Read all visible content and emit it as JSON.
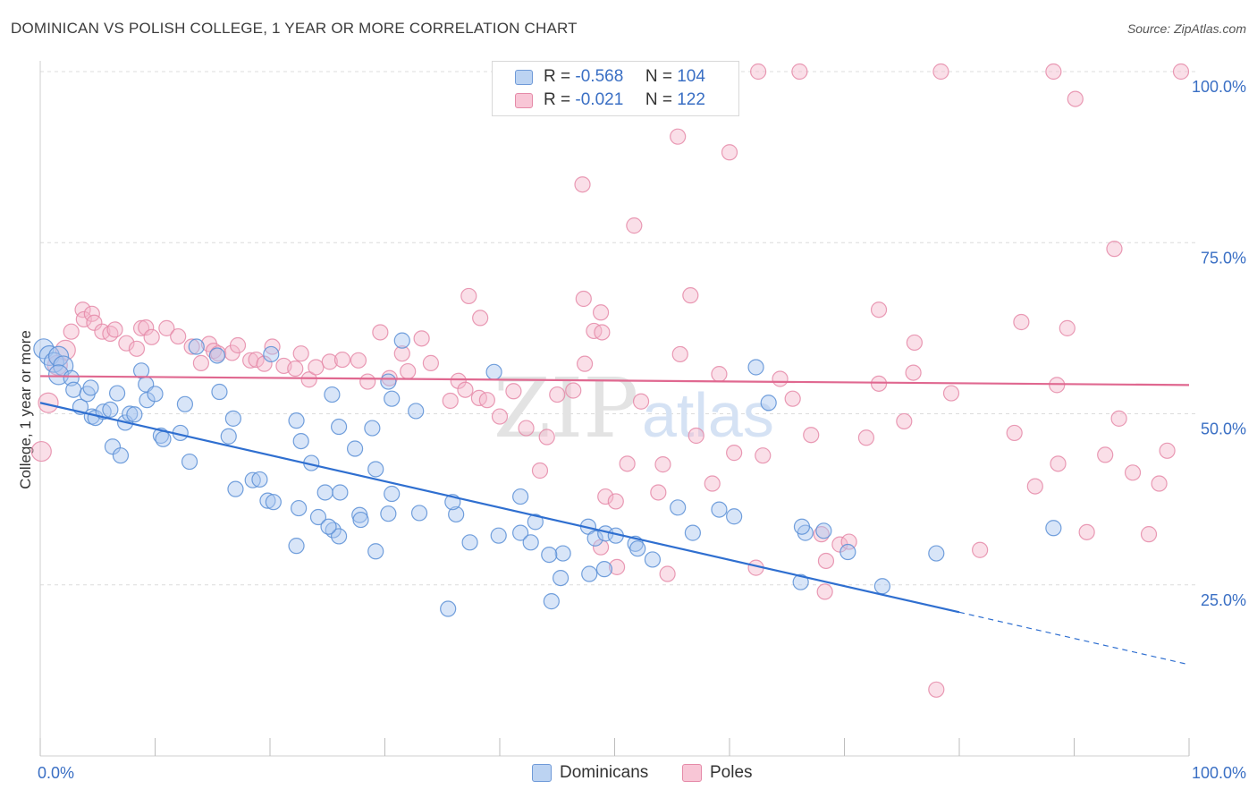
{
  "title": "DOMINICAN VS POLISH COLLEGE, 1 YEAR OR MORE CORRELATION CHART",
  "source": "Source: ZipAtlas.com",
  "watermark": {
    "zip": "ZIP",
    "atlas": "atlas"
  },
  "colors": {
    "blue_fill": "#a9c6ef",
    "blue_stroke": "#5b8fd6",
    "blue_line": "#2f6fd0",
    "pink_fill": "#f5b8cb",
    "pink_stroke": "#e58aa8",
    "pink_line": "#e06890",
    "axis_text": "#3a6fc4"
  },
  "legend": {
    "rows": [
      {
        "r_label": "R =",
        "r_value": "-0.568",
        "n_label": "N =",
        "n_value": "104"
      },
      {
        "r_label": "R =",
        "r_value": "-0.021",
        "n_label": "N =",
        "n_value": "122"
      }
    ]
  },
  "bottom_legend": {
    "blue": "Dominicans",
    "pink": "Poles"
  },
  "chart_data": {
    "type": "scatter",
    "title": "DOMINICAN VS POLISH COLLEGE, 1 YEAR OR MORE CORRELATION CHART",
    "xlabel": "",
    "ylabel": "College, 1 year or more",
    "xlim": [
      0,
      100
    ],
    "ylim": [
      0,
      100
    ],
    "x_tick_labels": [
      {
        "value": 0,
        "label": "0.0%"
      },
      {
        "value": 100,
        "label": "100.0%"
      }
    ],
    "y_tick_labels": [
      {
        "value": 25,
        "label": "25.0%"
      },
      {
        "value": 50,
        "label": "50.0%"
      },
      {
        "value": 75,
        "label": "75.0%"
      },
      {
        "value": 100,
        "label": "100.0%"
      }
    ],
    "series": [
      {
        "name": "Dominicans",
        "color": "blue",
        "r": -0.568,
        "n": 104,
        "trend": {
          "x0": 0,
          "y0": 51.6,
          "x1": 80,
          "y1": 21.0,
          "dashed_to_x": 100
        },
        "points": [
          [
            0.3,
            59.5
          ],
          [
            0.8,
            58.5
          ],
          [
            1.2,
            57.5
          ],
          [
            1.6,
            58.4
          ],
          [
            2.0,
            57.0
          ],
          [
            1.6,
            55.7
          ],
          [
            2.7,
            55.2
          ],
          [
            2.9,
            53.5
          ],
          [
            3.5,
            51.0
          ],
          [
            4.1,
            52.9
          ],
          [
            4.4,
            53.8
          ],
          [
            6.7,
            53.0
          ],
          [
            4.5,
            49.6
          ],
          [
            4.8,
            49.4
          ],
          [
            5.5,
            50.3
          ],
          [
            6.1,
            50.6
          ],
          [
            7.4,
            48.7
          ],
          [
            7.8,
            50.0
          ],
          [
            8.2,
            49.9
          ],
          [
            6.3,
            45.2
          ],
          [
            7.0,
            43.9
          ],
          [
            8.8,
            56.3
          ],
          [
            10.5,
            46.8
          ],
          [
            12.2,
            47.2
          ],
          [
            10.7,
            46.3
          ],
          [
            13.0,
            43.0
          ],
          [
            9.3,
            52.0
          ],
          [
            9.2,
            54.3
          ],
          [
            10.0,
            52.9
          ],
          [
            13.6,
            59.8
          ],
          [
            15.4,
            58.5
          ],
          [
            12.6,
            51.4
          ],
          [
            15.6,
            53.2
          ],
          [
            16.4,
            46.7
          ],
          [
            16.8,
            49.3
          ],
          [
            20.1,
            58.7
          ],
          [
            22.3,
            49.0
          ],
          [
            25.4,
            52.8
          ],
          [
            27.4,
            44.9
          ],
          [
            22.7,
            46.0
          ],
          [
            23.6,
            42.8
          ],
          [
            26.0,
            48.1
          ],
          [
            28.9,
            47.9
          ],
          [
            32.7,
            50.4
          ],
          [
            31.5,
            60.7
          ],
          [
            30.3,
            54.7
          ],
          [
            30.6,
            52.2
          ],
          [
            39.5,
            56.1
          ],
          [
            29.2,
            41.9
          ],
          [
            17.0,
            39.0
          ],
          [
            18.5,
            40.3
          ],
          [
            19.1,
            40.4
          ],
          [
            19.8,
            37.3
          ],
          [
            20.3,
            37.1
          ],
          [
            22.5,
            36.2
          ],
          [
            24.2,
            34.9
          ],
          [
            25.5,
            33.0
          ],
          [
            27.8,
            35.2
          ],
          [
            27.9,
            34.5
          ],
          [
            30.3,
            35.4
          ],
          [
            33.0,
            35.5
          ],
          [
            36.2,
            35.3
          ],
          [
            35.9,
            37.1
          ],
          [
            37.4,
            31.2
          ],
          [
            41.8,
            32.6
          ],
          [
            43.1,
            34.2
          ],
          [
            45.5,
            29.6
          ],
          [
            47.7,
            33.5
          ],
          [
            48.3,
            31.8
          ],
          [
            49.2,
            32.5
          ],
          [
            50.1,
            32.2
          ],
          [
            51.8,
            31.0
          ],
          [
            53.3,
            28.7
          ],
          [
            55.5,
            36.3
          ],
          [
            59.1,
            36.0
          ],
          [
            52.0,
            30.3
          ],
          [
            56.8,
            32.6
          ],
          [
            60.4,
            35.0
          ],
          [
            62.3,
            56.8
          ],
          [
            63.4,
            51.6
          ],
          [
            66.6,
            32.6
          ],
          [
            70.3,
            29.8
          ],
          [
            66.3,
            33.5
          ],
          [
            66.2,
            25.4
          ],
          [
            73.3,
            24.8
          ],
          [
            68.2,
            32.9
          ],
          [
            78.0,
            29.6
          ],
          [
            88.2,
            33.3
          ],
          [
            26.0,
            32.1
          ],
          [
            29.2,
            29.9
          ],
          [
            22.3,
            30.7
          ],
          [
            25.1,
            33.5
          ],
          [
            30.6,
            38.3
          ],
          [
            24.8,
            38.5
          ],
          [
            26.1,
            38.5
          ],
          [
            44.3,
            29.4
          ],
          [
            49.1,
            27.3
          ],
          [
            47.8,
            26.6
          ],
          [
            44.5,
            22.6
          ],
          [
            45.3,
            26.0
          ],
          [
            42.7,
            31.2
          ],
          [
            39.9,
            32.2
          ],
          [
            35.5,
            21.5
          ],
          [
            41.8,
            37.9
          ]
        ]
      },
      {
        "name": "Poles",
        "color": "pink",
        "r": -0.021,
        "n": 122,
        "trend": {
          "x0": 0,
          "y0": 55.5,
          "x1": 100,
          "y1": 54.2
        },
        "points": [
          [
            0.1,
            44.5
          ],
          [
            0.7,
            51.6
          ],
          [
            1.5,
            57.1
          ],
          [
            2.2,
            59.3
          ],
          [
            2.7,
            62.0
          ],
          [
            3.7,
            65.2
          ],
          [
            3.8,
            63.8
          ],
          [
            4.5,
            64.6
          ],
          [
            4.7,
            63.3
          ],
          [
            5.4,
            62.0
          ],
          [
            6.1,
            61.7
          ],
          [
            6.5,
            62.3
          ],
          [
            7.5,
            60.3
          ],
          [
            8.4,
            59.5
          ],
          [
            8.8,
            62.5
          ],
          [
            9.2,
            62.6
          ],
          [
            9.7,
            61.2
          ],
          [
            11.0,
            62.5
          ],
          [
            12.0,
            61.3
          ],
          [
            13.2,
            59.8
          ],
          [
            14.0,
            57.4
          ],
          [
            14.7,
            60.2
          ],
          [
            15.1,
            59.2
          ],
          [
            15.5,
            58.8
          ],
          [
            16.7,
            58.9
          ],
          [
            17.2,
            60.0
          ],
          [
            18.3,
            57.8
          ],
          [
            18.8,
            57.9
          ],
          [
            19.5,
            57.3
          ],
          [
            20.2,
            59.8
          ],
          [
            21.2,
            57.0
          ],
          [
            22.2,
            56.6
          ],
          [
            22.7,
            58.8
          ],
          [
            23.4,
            55.0
          ],
          [
            24.0,
            56.8
          ],
          [
            25.2,
            57.6
          ],
          [
            26.3,
            57.9
          ],
          [
            27.7,
            57.8
          ],
          [
            28.5,
            54.7
          ],
          [
            29.6,
            61.9
          ],
          [
            30.4,
            55.2
          ],
          [
            31.5,
            58.8
          ],
          [
            32.0,
            56.2
          ],
          [
            33.2,
            61.0
          ],
          [
            34.0,
            57.4
          ],
          [
            35.7,
            51.9
          ],
          [
            36.4,
            54.8
          ],
          [
            37.0,
            53.5
          ],
          [
            38.2,
            52.3
          ],
          [
            38.9,
            52.0
          ],
          [
            40.0,
            49.6
          ],
          [
            41.2,
            53.3
          ],
          [
            42.3,
            47.9
          ],
          [
            43.5,
            41.7
          ],
          [
            44.1,
            46.6
          ],
          [
            45.0,
            52.8
          ],
          [
            46.4,
            53.4
          ],
          [
            47.4,
            57.3
          ],
          [
            48.2,
            62.1
          ],
          [
            49.2,
            37.9
          ],
          [
            50.1,
            37.2
          ],
          [
            51.1,
            42.7
          ],
          [
            52.3,
            51.8
          ],
          [
            53.8,
            38.5
          ],
          [
            54.2,
            42.6
          ],
          [
            55.7,
            58.7
          ],
          [
            57.1,
            46.8
          ],
          [
            58.5,
            39.8
          ],
          [
            59.1,
            55.8
          ],
          [
            60.4,
            44.3
          ],
          [
            62.9,
            43.9
          ],
          [
            64.4,
            55.1
          ],
          [
            65.5,
            52.2
          ],
          [
            67.1,
            46.9
          ],
          [
            68.0,
            32.4
          ],
          [
            69.6,
            30.9
          ],
          [
            70.4,
            31.3
          ],
          [
            71.9,
            46.5
          ],
          [
            75.2,
            48.9
          ],
          [
            76.1,
            60.4
          ],
          [
            79.3,
            53.0
          ],
          [
            81.8,
            30.1
          ],
          [
            86.6,
            39.4
          ],
          [
            88.5,
            54.2
          ],
          [
            91.1,
            32.7
          ],
          [
            92.7,
            44.0
          ],
          [
            95.1,
            41.4
          ],
          [
            96.5,
            32.4
          ],
          [
            97.4,
            39.8
          ],
          [
            99.3,
            100.0
          ],
          [
            62.5,
            100.0
          ],
          [
            66.1,
            100.0
          ],
          [
            78.4,
            100.0
          ],
          [
            88.2,
            100.0
          ],
          [
            90.1,
            96.0
          ],
          [
            47.2,
            83.5
          ],
          [
            51.7,
            77.5
          ],
          [
            55.5,
            90.5
          ],
          [
            60.0,
            88.2
          ],
          [
            56.6,
            67.3
          ],
          [
            48.8,
            64.8
          ],
          [
            47.3,
            66.8
          ],
          [
            48.9,
            61.9
          ],
          [
            73.0,
            54.4
          ],
          [
            76.0,
            56.0
          ],
          [
            68.3,
            24.0
          ],
          [
            78.0,
            9.7
          ],
          [
            68.4,
            28.5
          ],
          [
            62.3,
            27.5
          ],
          [
            54.6,
            26.6
          ],
          [
            85.4,
            63.4
          ],
          [
            73.0,
            65.2
          ],
          [
            89.4,
            62.5
          ],
          [
            93.5,
            74.1
          ],
          [
            84.8,
            47.2
          ],
          [
            88.6,
            42.7
          ],
          [
            98.1,
            44.6
          ],
          [
            93.9,
            49.3
          ],
          [
            50.2,
            27.6
          ],
          [
            48.8,
            30.5
          ],
          [
            37.3,
            67.2
          ],
          [
            38.3,
            64.0
          ]
        ]
      }
    ]
  }
}
